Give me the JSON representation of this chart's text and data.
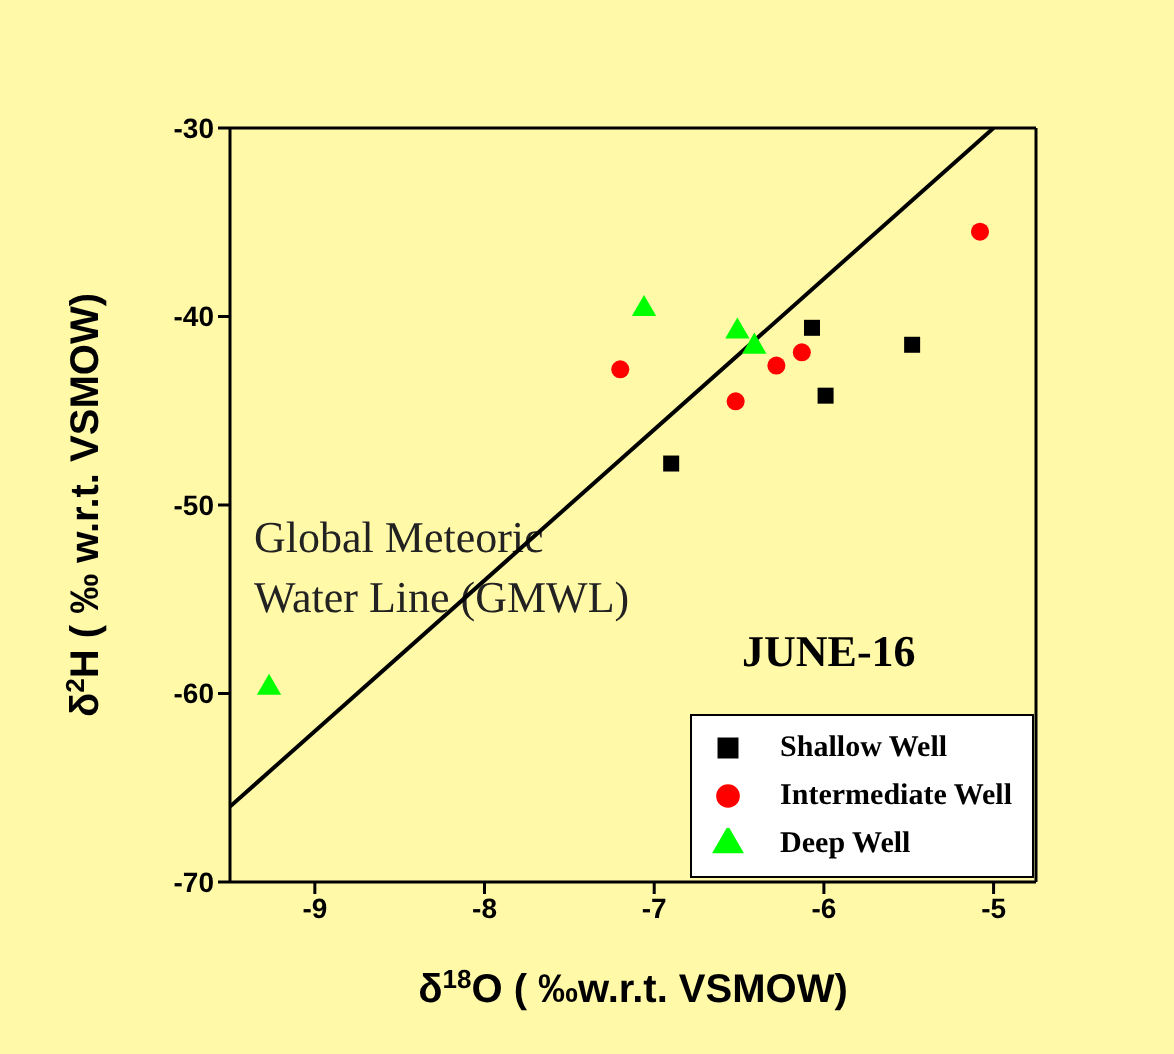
{
  "chart_data": {
    "type": "scatter",
    "xlabel": "δ$^{18}$O ( ‰w.r.t. VSMOW)",
    "ylabel": "δ$^{2}$H ( ‰ w.r.t. VSMOW)",
    "xlim": [
      -9.5,
      -4.75
    ],
    "xticks": [
      -9,
      -8,
      -7,
      -6,
      -5
    ],
    "ylim": [
      -70,
      -30
    ],
    "yticks": [
      -70,
      -60,
      -50,
      -40,
      -30
    ],
    "grid": false,
    "legend": "bottom right",
    "annotations": [
      "Global Meteoric Water Line (GMWL)",
      "JUNE-16"
    ],
    "series": [
      {
        "name": "Shallow Well",
        "color": "#000000",
        "marker": "square",
        "x": [
          -6.9,
          -6.07,
          -5.99,
          -5.48
        ],
        "values": [
          -47.8,
          -40.6,
          -44.2,
          -41.5
        ]
      },
      {
        "name": "Intermediate Well",
        "color": "#ff0000",
        "marker": "circle",
        "x": [
          -7.2,
          -6.52,
          -6.28,
          -6.13,
          -5.08
        ],
        "values": [
          -42.8,
          -44.5,
          -42.6,
          -41.9,
          -35.5
        ]
      },
      {
        "name": "Deep Well",
        "color": "#00ff00",
        "marker": "triangle",
        "x": [
          -9.27,
          -7.06,
          -6.51,
          -6.41
        ],
        "values": [
          -59.7,
          -39.6,
          -40.8,
          -41.6
        ]
      },
      {
        "type": "line",
        "color": "#000000",
        "marker": "none",
        "line_style": "solid",
        "x": [
          -9.5,
          -5
        ],
        "values": [
          -66,
          -30
        ]
      }
    ]
  }
}
